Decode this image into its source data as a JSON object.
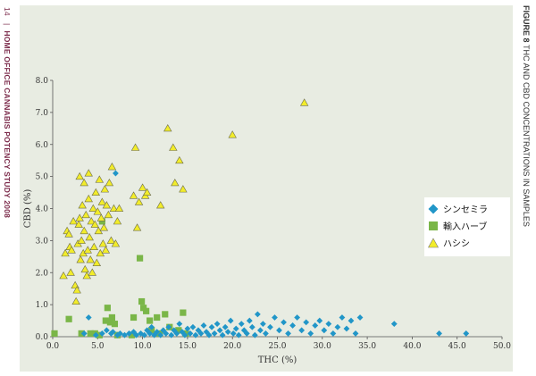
{
  "header": {
    "page_number": "14",
    "separator": "|",
    "publication": "HOME OFFICE CANNABIS POTENCY STUDY 2008",
    "figure_label": "FIGURE 8",
    "figure_title": "THC AND CBD CONCENTRATIONS IN SAMPLES"
  },
  "colors": {
    "panel_background": "#e8ece2",
    "sinsemilla": "#2196c8",
    "imported_herbal": "#7ab648",
    "resin": "#f2ec2a"
  },
  "chart_data": {
    "type": "scatter",
    "title": "THC AND CBD CONCENTRATIONS IN SAMPLES",
    "xlabel": "THC (%)",
    "ylabel": "CBD (%)",
    "xlim": [
      0,
      50
    ],
    "ylim": [
      0,
      8
    ],
    "xticks": [
      "0.0",
      "5.0",
      "10.0",
      "15.0",
      "20.0",
      "25.0",
      "30.0",
      "35.0",
      "40.0",
      "45.0",
      "50.0"
    ],
    "yticks": [
      "0.0",
      "1.0",
      "2.0",
      "3.0",
      "4.0",
      "5.0",
      "6.0",
      "7.0",
      "8.0"
    ],
    "grid": false,
    "legend_position": "right",
    "series": [
      {
        "name": "シンセミラ",
        "marker": "diamond",
        "color": "#2196c8",
        "points": [
          [
            3.5,
            0.1
          ],
          [
            4.0,
            0.6
          ],
          [
            4.8,
            0.05
          ],
          [
            5.5,
            0.1
          ],
          [
            6.0,
            0.2
          ],
          [
            6.5,
            0.1
          ],
          [
            6.7,
            0.15
          ],
          [
            7.0,
            5.1
          ],
          [
            7.2,
            0.05
          ],
          [
            7.5,
            0.1
          ],
          [
            8.0,
            0.05
          ],
          [
            8.5,
            0.1
          ],
          [
            9.0,
            0.15
          ],
          [
            9.3,
            0.05
          ],
          [
            9.8,
            0.1
          ],
          [
            10.2,
            0.05
          ],
          [
            10.5,
            0.2
          ],
          [
            10.8,
            0.1
          ],
          [
            11.0,
            0.3
          ],
          [
            11.3,
            0.05
          ],
          [
            11.6,
            0.15
          ],
          [
            12.0,
            0.05
          ],
          [
            12.3,
            0.2
          ],
          [
            12.6,
            0.1
          ],
          [
            12.9,
            0.3
          ],
          [
            13.2,
            0.05
          ],
          [
            13.5,
            0.2
          ],
          [
            13.8,
            0.1
          ],
          [
            14.1,
            0.4
          ],
          [
            14.4,
            0.15
          ],
          [
            14.7,
            0.05
          ],
          [
            15.0,
            0.25
          ],
          [
            15.3,
            0.1
          ],
          [
            15.6,
            0.3
          ],
          [
            15.9,
            0.05
          ],
          [
            16.2,
            0.2
          ],
          [
            16.5,
            0.1
          ],
          [
            16.8,
            0.35
          ],
          [
            17.1,
            0.15
          ],
          [
            17.4,
            0.05
          ],
          [
            17.7,
            0.3
          ],
          [
            18.0,
            0.1
          ],
          [
            18.3,
            0.4
          ],
          [
            18.6,
            0.2
          ],
          [
            18.9,
            0.05
          ],
          [
            19.2,
            0.3
          ],
          [
            19.5,
            0.15
          ],
          [
            19.8,
            0.5
          ],
          [
            20.1,
            0.1
          ],
          [
            20.4,
            0.25
          ],
          [
            20.7,
            0.05
          ],
          [
            21.0,
            0.4
          ],
          [
            21.3,
            0.2
          ],
          [
            21.6,
            0.1
          ],
          [
            21.9,
            0.5
          ],
          [
            22.2,
            0.3
          ],
          [
            22.5,
            0.05
          ],
          [
            22.8,
            0.7
          ],
          [
            23.1,
            0.2
          ],
          [
            23.4,
            0.4
          ],
          [
            23.7,
            0.1
          ],
          [
            24.2,
            0.3
          ],
          [
            24.7,
            0.6
          ],
          [
            25.2,
            0.2
          ],
          [
            25.7,
            0.45
          ],
          [
            26.2,
            0.1
          ],
          [
            26.7,
            0.35
          ],
          [
            27.2,
            0.6
          ],
          [
            27.7,
            0.2
          ],
          [
            28.2,
            0.45
          ],
          [
            28.7,
            0.1
          ],
          [
            29.2,
            0.35
          ],
          [
            29.7,
            0.5
          ],
          [
            30.2,
            0.2
          ],
          [
            30.7,
            0.4
          ],
          [
            31.2,
            0.1
          ],
          [
            31.7,
            0.3
          ],
          [
            32.2,
            0.6
          ],
          [
            32.7,
            0.25
          ],
          [
            33.2,
            0.5
          ],
          [
            33.7,
            0.1
          ],
          [
            34.2,
            0.6
          ],
          [
            38.0,
            0.4
          ],
          [
            43.0,
            0.1
          ],
          [
            46.0,
            0.1
          ]
        ]
      },
      {
        "name": "輸入ハーブ",
        "marker": "square",
        "color": "#7ab648",
        "points": [
          [
            0.2,
            0.1
          ],
          [
            1.8,
            0.55
          ],
          [
            3.2,
            0.1
          ],
          [
            4.2,
            0.1
          ],
          [
            4.7,
            0.1
          ],
          [
            5.2,
            0.05
          ],
          [
            5.5,
            3.6
          ],
          [
            5.9,
            0.5
          ],
          [
            6.1,
            0.9
          ],
          [
            6.4,
            0.45
          ],
          [
            6.6,
            0.6
          ],
          [
            6.9,
            0.4
          ],
          [
            7.2,
            0.05
          ],
          [
            8.8,
            0.05
          ],
          [
            9.0,
            0.6
          ],
          [
            9.7,
            2.45
          ],
          [
            9.9,
            1.1
          ],
          [
            10.1,
            0.9
          ],
          [
            10.4,
            0.8
          ],
          [
            10.8,
            0.5
          ],
          [
            11.0,
            0.2
          ],
          [
            11.6,
            0.6
          ],
          [
            11.9,
            0.1
          ],
          [
            12.5,
            0.7
          ],
          [
            13.0,
            0.3
          ],
          [
            14.0,
            0.2
          ],
          [
            14.5,
            0.75
          ],
          [
            14.8,
            0.1
          ]
        ]
      },
      {
        "name": "ハシシ",
        "marker": "triangle",
        "color": "#f2ec2a",
        "points": [
          [
            1.2,
            1.9
          ],
          [
            1.4,
            2.6
          ],
          [
            1.6,
            3.3
          ],
          [
            1.8,
            3.2
          ],
          [
            1.9,
            2.8
          ],
          [
            2.0,
            2.0
          ],
          [
            2.1,
            2.7
          ],
          [
            2.3,
            3.6
          ],
          [
            2.5,
            1.6
          ],
          [
            2.6,
            1.1
          ],
          [
            2.7,
            1.45
          ],
          [
            2.8,
            2.9
          ],
          [
            2.9,
            3.5
          ],
          [
            3.0,
            3.7
          ],
          [
            3.0,
            5.0
          ],
          [
            3.1,
            2.4
          ],
          [
            3.2,
            3.0
          ],
          [
            3.3,
            4.1
          ],
          [
            3.4,
            2.6
          ],
          [
            3.5,
            3.3
          ],
          [
            3.5,
            4.8
          ],
          [
            3.6,
            2.1
          ],
          [
            3.7,
            3.8
          ],
          [
            3.8,
            1.9
          ],
          [
            3.9,
            2.7
          ],
          [
            4.0,
            4.3
          ],
          [
            4.0,
            5.1
          ],
          [
            4.1,
            3.1
          ],
          [
            4.2,
            2.4
          ],
          [
            4.3,
            3.6
          ],
          [
            4.4,
            2.0
          ],
          [
            4.5,
            4.0
          ],
          [
            4.6,
            2.8
          ],
          [
            4.7,
            3.5
          ],
          [
            4.8,
            4.5
          ],
          [
            4.9,
            2.3
          ],
          [
            5.0,
            3.9
          ],
          [
            5.1,
            3.3
          ],
          [
            5.2,
            4.9
          ],
          [
            5.3,
            2.6
          ],
          [
            5.4,
            3.7
          ],
          [
            5.5,
            4.2
          ],
          [
            5.6,
            2.9
          ],
          [
            5.7,
            3.4
          ],
          [
            5.8,
            4.6
          ],
          [
            5.9,
            2.7
          ],
          [
            6.0,
            4.1
          ],
          [
            6.2,
            3.8
          ],
          [
            6.3,
            4.8
          ],
          [
            6.5,
            3.0
          ],
          [
            6.6,
            5.3
          ],
          [
            6.8,
            4.0
          ],
          [
            7.0,
            2.9
          ],
          [
            7.2,
            3.6
          ],
          [
            7.4,
            4.0
          ],
          [
            9.0,
            4.4
          ],
          [
            9.2,
            5.9
          ],
          [
            9.4,
            3.4
          ],
          [
            9.6,
            4.2
          ],
          [
            10.0,
            4.65
          ],
          [
            10.3,
            4.4
          ],
          [
            10.5,
            4.5
          ],
          [
            12.0,
            4.1
          ],
          [
            12.8,
            6.5
          ],
          [
            13.4,
            5.9
          ],
          [
            13.6,
            4.8
          ],
          [
            14.1,
            5.5
          ],
          [
            14.5,
            4.6
          ],
          [
            20.0,
            6.3
          ],
          [
            28.0,
            7.3
          ]
        ]
      }
    ]
  }
}
